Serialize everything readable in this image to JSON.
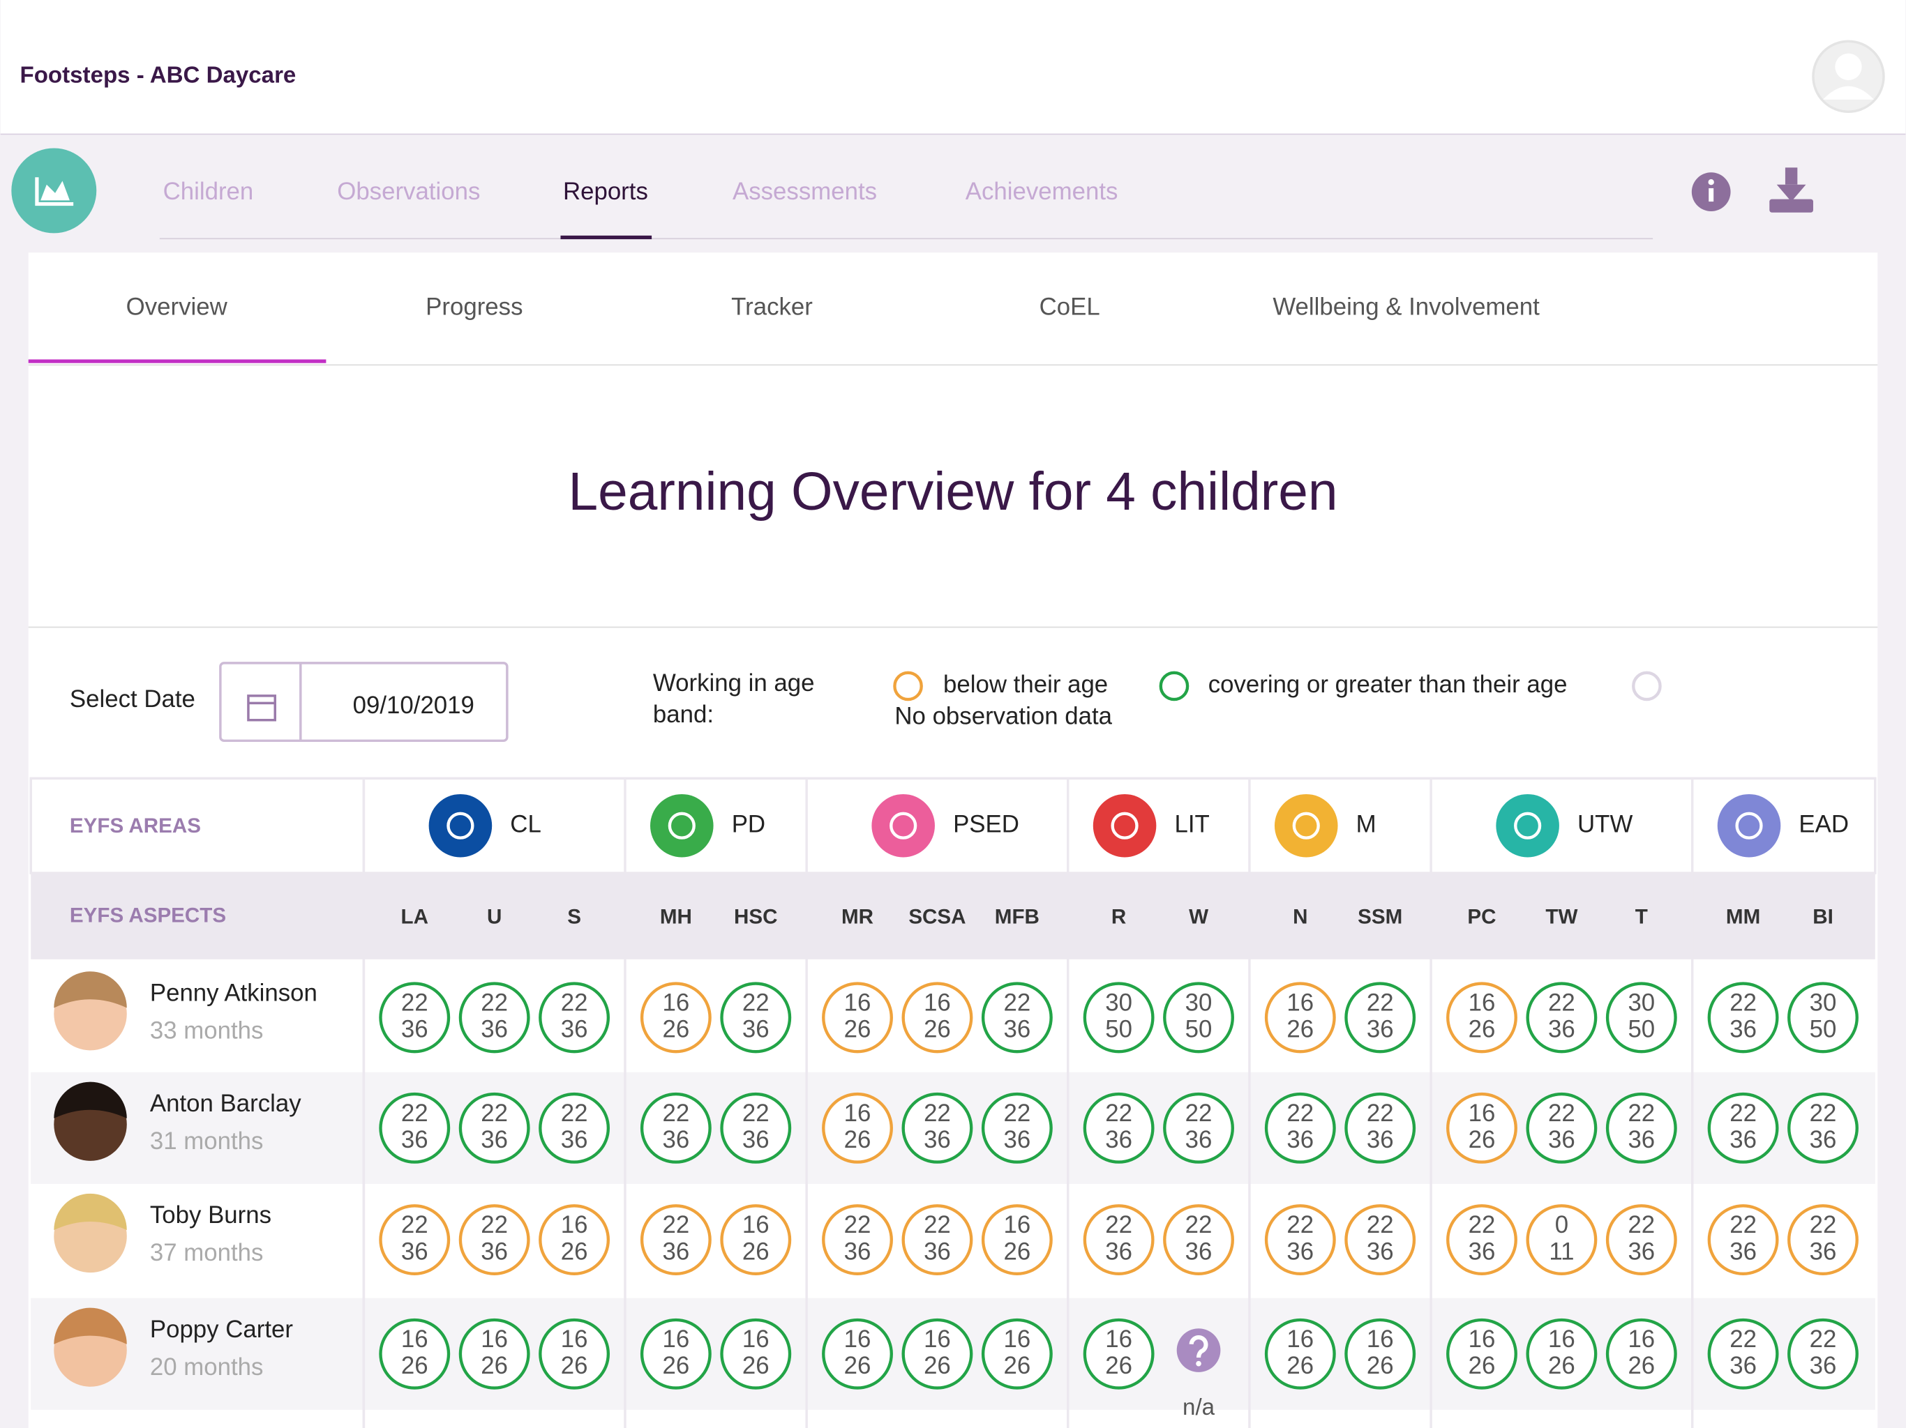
{
  "header": {
    "title": "Footsteps - ABC Daycare"
  },
  "nav": {
    "tabs": [
      "Children",
      "Observations",
      "Reports",
      "Assessments",
      "Achievements"
    ],
    "active_index": 2
  },
  "subnav": {
    "tabs": [
      "Overview",
      "Progress",
      "Tracker",
      "CoEL",
      "Wellbeing & Involvement"
    ],
    "active_index": 0
  },
  "heading": "Learning Overview for 4 children",
  "date_picker": {
    "label": "Select Date",
    "value": "09/10/2019"
  },
  "legend": {
    "title": "Working in age band:",
    "items": [
      {
        "label": "below their age",
        "status": "below",
        "color": "#f0a33c"
      },
      {
        "label": "covering or greater than their age",
        "status": "covering",
        "color": "#22a447"
      },
      {
        "label": "No observation data",
        "status": "none",
        "color": "#ddd6e3"
      }
    ]
  },
  "table": {
    "areas_label": "EYFS AREAS",
    "aspects_label": "EYFS ASPECTS",
    "areas": [
      {
        "name": "CL",
        "color": "#0b4ea2",
        "aspects": [
          "LA",
          "U",
          "S"
        ]
      },
      {
        "name": "PD",
        "color": "#39ac4a",
        "aspects": [
          "MH",
          "HSC"
        ]
      },
      {
        "name": "PSED",
        "color": "#ec5e9b",
        "aspects": [
          "MR",
          "SCSA",
          "MFB"
        ]
      },
      {
        "name": "LIT",
        "color": "#e23b3b",
        "aspects": [
          "R",
          "W"
        ]
      },
      {
        "name": "M",
        "color": "#f2b233",
        "aspects": [
          "N",
          "SSM"
        ]
      },
      {
        "name": "UTW",
        "color": "#27b5a6",
        "aspects": [
          "PC",
          "TW",
          "T"
        ]
      },
      {
        "name": "EAD",
        "color": "#7f87d6",
        "aspects": [
          "MM",
          "BI"
        ]
      }
    ],
    "rows": [
      {
        "name": "Penny Atkinson",
        "age": "33 months",
        "cells": [
          {
            "from": 22,
            "to": 36,
            "status": "covering"
          },
          {
            "from": 22,
            "to": 36,
            "status": "covering"
          },
          {
            "from": 22,
            "to": 36,
            "status": "covering"
          },
          {
            "from": 16,
            "to": 26,
            "status": "below"
          },
          {
            "from": 22,
            "to": 36,
            "status": "covering"
          },
          {
            "from": 16,
            "to": 26,
            "status": "below"
          },
          {
            "from": 16,
            "to": 26,
            "status": "below"
          },
          {
            "from": 22,
            "to": 36,
            "status": "covering"
          },
          {
            "from": 30,
            "to": 50,
            "status": "covering"
          },
          {
            "from": 30,
            "to": 50,
            "status": "covering"
          },
          {
            "from": 16,
            "to": 26,
            "status": "below"
          },
          {
            "from": 22,
            "to": 36,
            "status": "covering"
          },
          {
            "from": 16,
            "to": 26,
            "status": "below"
          },
          {
            "from": 22,
            "to": 36,
            "status": "covering"
          },
          {
            "from": 30,
            "to": 50,
            "status": "covering"
          },
          {
            "from": 22,
            "to": 36,
            "status": "covering"
          },
          {
            "from": 30,
            "to": 50,
            "status": "covering"
          }
        ]
      },
      {
        "name": "Anton Barclay",
        "age": "31 months",
        "cells": [
          {
            "from": 22,
            "to": 36,
            "status": "covering"
          },
          {
            "from": 22,
            "to": 36,
            "status": "covering"
          },
          {
            "from": 22,
            "to": 36,
            "status": "covering"
          },
          {
            "from": 22,
            "to": 36,
            "status": "covering"
          },
          {
            "from": 22,
            "to": 36,
            "status": "covering"
          },
          {
            "from": 16,
            "to": 26,
            "status": "below"
          },
          {
            "from": 22,
            "to": 36,
            "status": "covering"
          },
          {
            "from": 22,
            "to": 36,
            "status": "covering"
          },
          {
            "from": 22,
            "to": 36,
            "status": "covering"
          },
          {
            "from": 22,
            "to": 36,
            "status": "covering"
          },
          {
            "from": 22,
            "to": 36,
            "status": "covering"
          },
          {
            "from": 22,
            "to": 36,
            "status": "covering"
          },
          {
            "from": 16,
            "to": 26,
            "status": "below"
          },
          {
            "from": 22,
            "to": 36,
            "status": "covering"
          },
          {
            "from": 22,
            "to": 36,
            "status": "covering"
          },
          {
            "from": 22,
            "to": 36,
            "status": "covering"
          },
          {
            "from": 22,
            "to": 36,
            "status": "covering"
          }
        ]
      },
      {
        "name": "Toby Burns",
        "age": "37 months",
        "cells": [
          {
            "from": 22,
            "to": 36,
            "status": "below"
          },
          {
            "from": 22,
            "to": 36,
            "status": "below"
          },
          {
            "from": 16,
            "to": 26,
            "status": "below"
          },
          {
            "from": 22,
            "to": 36,
            "status": "below"
          },
          {
            "from": 16,
            "to": 26,
            "status": "below"
          },
          {
            "from": 22,
            "to": 36,
            "status": "below"
          },
          {
            "from": 22,
            "to": 36,
            "status": "below"
          },
          {
            "from": 16,
            "to": 26,
            "status": "below"
          },
          {
            "from": 22,
            "to": 36,
            "status": "below"
          },
          {
            "from": 22,
            "to": 36,
            "status": "below"
          },
          {
            "from": 22,
            "to": 36,
            "status": "below"
          },
          {
            "from": 22,
            "to": 36,
            "status": "below"
          },
          {
            "from": 22,
            "to": 36,
            "status": "below"
          },
          {
            "from": 0,
            "to": 11,
            "status": "below"
          },
          {
            "from": 22,
            "to": 36,
            "status": "below"
          },
          {
            "from": 22,
            "to": 36,
            "status": "below"
          },
          {
            "from": 22,
            "to": 36,
            "status": "below"
          }
        ]
      },
      {
        "name": "Poppy Carter",
        "age": "20 months",
        "cells": [
          {
            "from": 16,
            "to": 26,
            "status": "covering"
          },
          {
            "from": 16,
            "to": 26,
            "status": "covering"
          },
          {
            "from": 16,
            "to": 26,
            "status": "covering"
          },
          {
            "from": 16,
            "to": 26,
            "status": "covering"
          },
          {
            "from": 16,
            "to": 26,
            "status": "covering"
          },
          {
            "from": 16,
            "to": 26,
            "status": "covering"
          },
          {
            "from": 16,
            "to": 26,
            "status": "covering"
          },
          {
            "from": 16,
            "to": 26,
            "status": "covering"
          },
          {
            "from": 16,
            "to": 26,
            "status": "covering"
          },
          {
            "label": "n/a",
            "status": "unknown"
          },
          {
            "from": 16,
            "to": 26,
            "status": "covering"
          },
          {
            "from": 16,
            "to": 26,
            "status": "covering"
          },
          {
            "from": 16,
            "to": 26,
            "status": "covering"
          },
          {
            "from": 16,
            "to": 26,
            "status": "covering"
          },
          {
            "from": 16,
            "to": 26,
            "status": "covering"
          },
          {
            "from": 22,
            "to": 36,
            "status": "covering"
          },
          {
            "from": 22,
            "to": 36,
            "status": "covering"
          }
        ]
      }
    ]
  }
}
